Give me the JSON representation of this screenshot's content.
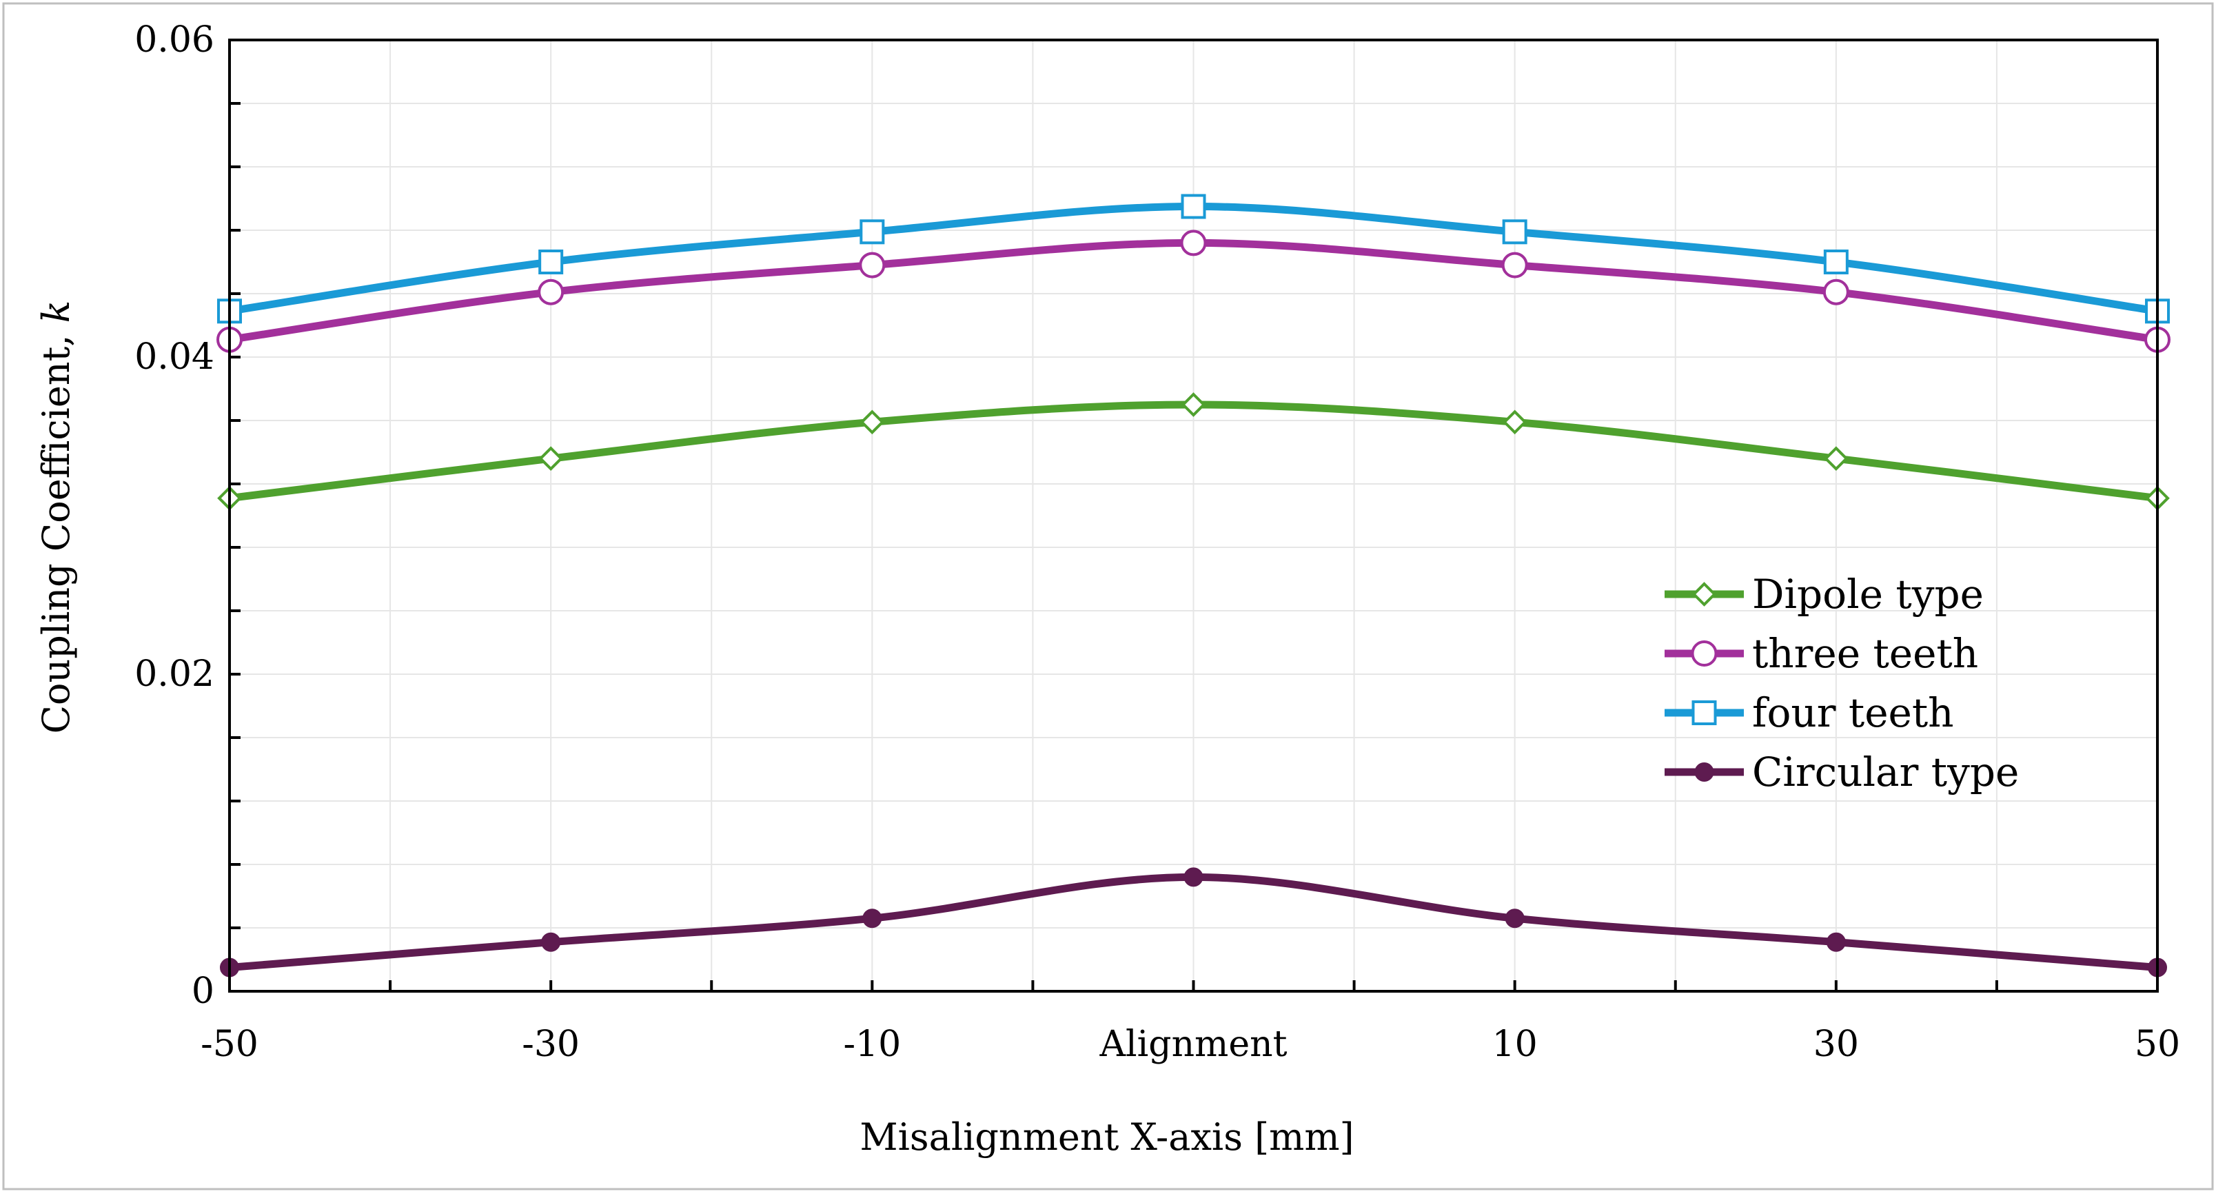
{
  "chart_data": {
    "type": "line",
    "title": "",
    "xlabel": "Misalignment X-axis [mm]",
    "ylabel": "Coupling Coefficient,",
    "ylabel_symbol": "k",
    "categories": [
      "-50",
      "-30",
      "-10",
      "Alignment",
      "10",
      "30",
      "50"
    ],
    "ylim": [
      0,
      0.06
    ],
    "yticks": [
      0,
      0.02,
      0.04,
      0.06
    ],
    "ytick_labels": [
      "0",
      "0.02",
      "0.04",
      "0.06"
    ],
    "grid": true,
    "legend_position": "right",
    "series": [
      {
        "name": "Dipole type",
        "color": "#4fa12e",
        "marker": "diamond",
        "values": [
          0.0311,
          0.0336,
          0.0359,
          0.037,
          0.0359,
          0.0336,
          0.0311
        ]
      },
      {
        "name": "three teeth",
        "color": "#a2309b",
        "marker": "circle",
        "values": [
          0.0411,
          0.0441,
          0.0458,
          0.0472,
          0.0458,
          0.0441,
          0.0411
        ]
      },
      {
        "name": "four teeth",
        "color": "#1a9ad6",
        "marker": "square",
        "values": [
          0.0429,
          0.046,
          0.0479,
          0.0495,
          0.0479,
          0.046,
          0.0429
        ]
      },
      {
        "name": "Circular type",
        "color": "#5e1b50",
        "marker": "filled-circle",
        "values": [
          0.0015,
          0.0031,
          0.0046,
          0.0072,
          0.0046,
          0.0031,
          0.0015
        ]
      }
    ]
  }
}
